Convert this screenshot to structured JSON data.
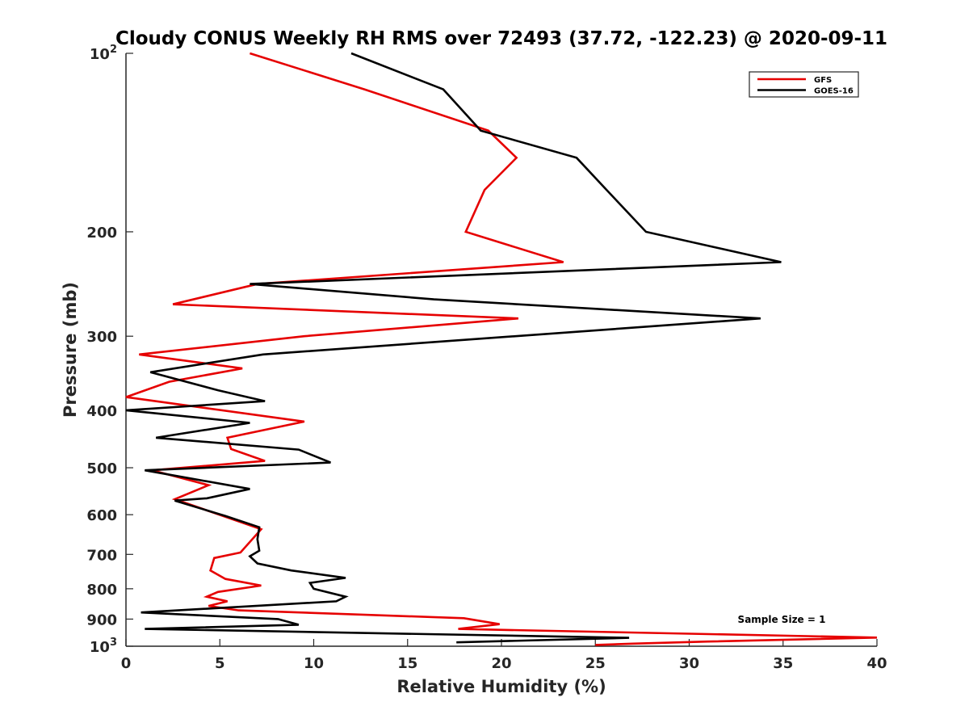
{
  "chart_data": {
    "type": "line",
    "title": "Cloudy CONUS Weekly RH RMS over 72493 (37.72, -122.23) @ 2020-09-11",
    "xlabel": "Relative Humidity (%)",
    "ylabel": "Pressure (mb)",
    "xlim": [
      0,
      40
    ],
    "ylim": [
      100,
      1000
    ],
    "y_scale": "log",
    "y_reversed": true,
    "grid": false,
    "legend_position": "top-right",
    "x_ticks": [
      "0",
      "5",
      "10",
      "15",
      "20",
      "25",
      "30",
      "35",
      "40"
    ],
    "y_ticks": [
      {
        "value": 100,
        "base": "10",
        "exp": "2"
      },
      {
        "value": 200,
        "label": "200"
      },
      {
        "value": 300,
        "label": "300"
      },
      {
        "value": 400,
        "label": "400"
      },
      {
        "value": 500,
        "label": "500"
      },
      {
        "value": 600,
        "label": "600"
      },
      {
        "value": 700,
        "label": "700"
      },
      {
        "value": 800,
        "label": "800"
      },
      {
        "value": 900,
        "label": "900"
      },
      {
        "value": 1000,
        "base": "10",
        "exp": "3"
      }
    ],
    "annotation": "Sample Size = 1",
    "series": [
      {
        "name": "GFS",
        "color": "#e60000",
        "points": [
          [
            6.6,
            100
          ],
          [
            12.7,
            115
          ],
          [
            19.3,
            135
          ],
          [
            20.8,
            150
          ],
          [
            19.1,
            170
          ],
          [
            18.1,
            200
          ],
          [
            23.3,
            225
          ],
          [
            7.0,
            245
          ],
          [
            2.5,
            265
          ],
          [
            20.9,
            280
          ],
          [
            9.5,
            300
          ],
          [
            0.7,
            322
          ],
          [
            6.2,
            340
          ],
          [
            2.3,
            358
          ],
          [
            0.0,
            380
          ],
          [
            9.5,
            418
          ],
          [
            5.4,
            445
          ],
          [
            5.6,
            465
          ],
          [
            7.4,
            487
          ],
          [
            1.4,
            505
          ],
          [
            4.4,
            535
          ],
          [
            2.6,
            565
          ],
          [
            7.2,
            635
          ],
          [
            6.1,
            695
          ],
          [
            4.7,
            710
          ],
          [
            4.5,
            745
          ],
          [
            5.3,
            770
          ],
          [
            7.2,
            790
          ],
          [
            4.9,
            810
          ],
          [
            4.3,
            825
          ],
          [
            5.4,
            840
          ],
          [
            4.4,
            855
          ],
          [
            6.0,
            870
          ],
          [
            18.0,
            897
          ],
          [
            19.9,
            918
          ],
          [
            17.7,
            935
          ],
          [
            40.0,
            967
          ],
          [
            31.0,
            982
          ],
          [
            27.0,
            990
          ],
          [
            25.0,
            995
          ]
        ]
      },
      {
        "name": "GOES-16",
        "color": "#000000",
        "points": [
          [
            12.0,
            100
          ],
          [
            16.9,
            115
          ],
          [
            18.9,
            135
          ],
          [
            24.0,
            150
          ],
          [
            25.6,
            170
          ],
          [
            27.7,
            200
          ],
          [
            34.9,
            225
          ],
          [
            6.6,
            245
          ],
          [
            16.4,
            260
          ],
          [
            33.8,
            280
          ],
          [
            7.3,
            322
          ],
          [
            1.3,
            345
          ],
          [
            4.9,
            370
          ],
          [
            7.4,
            386
          ],
          [
            0.0,
            400
          ],
          [
            6.6,
            420
          ],
          [
            1.6,
            445
          ],
          [
            9.2,
            466
          ],
          [
            10.9,
            490
          ],
          [
            1.0,
            505
          ],
          [
            6.6,
            543
          ],
          [
            4.3,
            563
          ],
          [
            2.6,
            568
          ],
          [
            5.3,
            603
          ],
          [
            7.1,
            630
          ],
          [
            7.0,
            660
          ],
          [
            7.1,
            690
          ],
          [
            6.6,
            705
          ],
          [
            7.0,
            725
          ],
          [
            8.8,
            745
          ],
          [
            11.7,
            767
          ],
          [
            9.8,
            782
          ],
          [
            10.0,
            800
          ],
          [
            11.7,
            825
          ],
          [
            11.2,
            840
          ],
          [
            0.8,
            877
          ],
          [
            8.1,
            900
          ],
          [
            9.2,
            920
          ],
          [
            1.0,
            935
          ],
          [
            26.8,
            968
          ],
          [
            17.6,
            985
          ]
        ]
      }
    ]
  }
}
